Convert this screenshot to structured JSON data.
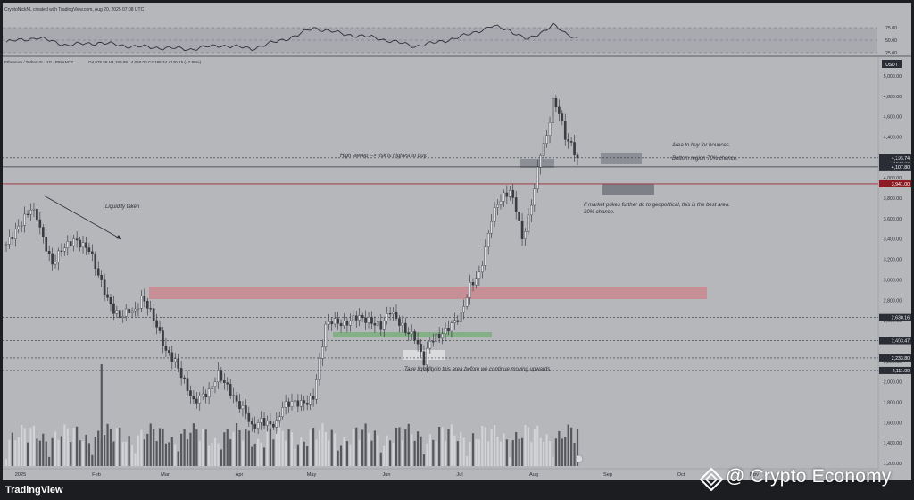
{
  "header": {
    "credit": "CryptoNickNL created with TradingView.com, Aug 20, 2025 07:08 UTC",
    "symbol": "Ethereum / TetherUS · 1D · BINANCE",
    "ohlc": "O4,075.58 H4,199.99 L4,060.00 C4,195.74 +120.15 (+2.95%)"
  },
  "rsi": {
    "tick_labels": [
      "75.00",
      "50.00",
      "25.00"
    ]
  },
  "footer": {
    "logo": "TradingView",
    "watermark": "@ Crypto Economy"
  },
  "chart_data": {
    "type": "candlestick",
    "xlabels": [
      "2025",
      "Feb",
      "Mar",
      "Apr",
      "May",
      "Jun",
      "Jul",
      "Aug",
      "Sep",
      "Oct",
      "Nov"
    ],
    "currency": "USDT",
    "yticks": [
      1200,
      1400,
      1600,
      1800,
      2000,
      2200,
      2400,
      2600,
      2800,
      3000,
      3200,
      3400,
      3600,
      3800,
      4000,
      4200,
      4400,
      4600,
      4800,
      5000
    ],
    "ytick_labels": [
      "1,200.00",
      "1,400.00",
      "1,600.00",
      "1,800.00",
      "2,000.00",
      "2,200.00",
      "2,400.00",
      "2,600.00",
      "2,800.00",
      "3,000.00",
      "3,200.00",
      "3,400.00",
      "3,600.00",
      "3,800.00",
      "4,000.00",
      "4,200.00",
      "4,400.00",
      "4,600.00",
      "4,800.00",
      "5,000.00"
    ],
    "ylim": [
      1100,
      5100
    ],
    "price_levels": [
      {
        "value": 4195.74,
        "label": "4,195.74",
        "sublabel": "16:51:12",
        "color": "#2a2d35"
      },
      {
        "value": 4107.8,
        "label": "4,107.80",
        "color": "#2a2d35"
      },
      {
        "value": 3941.0,
        "label": "3,941.00",
        "color": "#8e1b24"
      },
      {
        "value": 2630.16,
        "label": "2,630.16",
        "color": "#2a2d35"
      },
      {
        "value": 2403.47,
        "label": "2,403.47",
        "color": "#2a2d35"
      },
      {
        "value": 2233.8,
        "label": "2,233.80",
        "color": "#2a2d35"
      },
      {
        "value": 2111.0,
        "label": "2,111.00",
        "color": "#2a2d35"
      }
    ],
    "price_path": [
      [
        0,
        3350
      ],
      [
        4,
        3520
      ],
      [
        8,
        3700
      ],
      [
        10,
        3620
      ],
      [
        12,
        3400
      ],
      [
        15,
        3150
      ],
      [
        18,
        3300
      ],
      [
        22,
        3390
      ],
      [
        27,
        3300
      ],
      [
        30,
        3050
      ],
      [
        33,
        2810
      ],
      [
        35,
        2700
      ],
      [
        37,
        2640
      ],
      [
        40,
        2700
      ],
      [
        42,
        2690
      ],
      [
        44,
        2820
      ],
      [
        46,
        2750
      ],
      [
        49,
        2550
      ],
      [
        52,
        2300
      ],
      [
        55,
        2200
      ],
      [
        58,
        2000
      ],
      [
        61,
        1800
      ],
      [
        63,
        1850
      ],
      [
        66,
        1900
      ],
      [
        69,
        2080
      ],
      [
        72,
        1950
      ],
      [
        75,
        1800
      ],
      [
        78,
        1700
      ],
      [
        80,
        1550
      ],
      [
        83,
        1620
      ],
      [
        86,
        1580
      ],
      [
        88,
        1590
      ],
      [
        90,
        1760
      ],
      [
        93,
        1800
      ],
      [
        96,
        1790
      ],
      [
        98,
        1800
      ],
      [
        100,
        1850
      ],
      [
        102,
        2200
      ],
      [
        104,
        2550
      ],
      [
        106,
        2600
      ],
      [
        110,
        2560
      ],
      [
        114,
        2640
      ],
      [
        118,
        2600
      ],
      [
        122,
        2540
      ],
      [
        125,
        2700
      ],
      [
        127,
        2620
      ],
      [
        130,
        2500
      ],
      [
        133,
        2440
      ],
      [
        136,
        2200
      ],
      [
        138,
        2400
      ],
      [
        141,
        2450
      ],
      [
        143,
        2500
      ],
      [
        145,
        2560
      ],
      [
        148,
        2650
      ],
      [
        151,
        2940
      ],
      [
        154,
        3050
      ],
      [
        156,
        3300
      ],
      [
        158,
        3600
      ],
      [
        160,
        3750
      ],
      [
        162,
        3820
      ],
      [
        164,
        3870
      ],
      [
        166,
        3700
      ],
      [
        168,
        3400
      ],
      [
        170,
        3600
      ],
      [
        172,
        3900
      ],
      [
        174,
        4250
      ],
      [
        176,
        4400
      ],
      [
        178,
        4750
      ],
      [
        180,
        4650
      ],
      [
        182,
        4400
      ],
      [
        184,
        4320
      ],
      [
        186,
        4195
      ]
    ],
    "rsi": [
      [
        0,
        46
      ],
      [
        10,
        55
      ],
      [
        20,
        40
      ],
      [
        30,
        45
      ],
      [
        40,
        38
      ],
      [
        50,
        35
      ],
      [
        60,
        32
      ],
      [
        70,
        40
      ],
      [
        80,
        33
      ],
      [
        88,
        47
      ],
      [
        95,
        60
      ],
      [
        100,
        75
      ],
      [
        110,
        62
      ],
      [
        120,
        55
      ],
      [
        133,
        38
      ],
      [
        140,
        45
      ],
      [
        150,
        60
      ],
      [
        158,
        78
      ],
      [
        164,
        70
      ],
      [
        170,
        50
      ],
      [
        174,
        65
      ],
      [
        178,
        82
      ],
      [
        182,
        62
      ],
      [
        186,
        55
      ]
    ],
    "annotations": [
      "Area to buy for bounces.",
      "Bottom region 70% chance.",
      "High sweep --> risk is highest to buy.",
      "Liquidity taken",
      "If market pukes further do to geopolitical, this is the best area.",
      "30% chance.",
      "Take liquidity in this area before we continue moving upwards."
    ],
    "grid": false
  }
}
